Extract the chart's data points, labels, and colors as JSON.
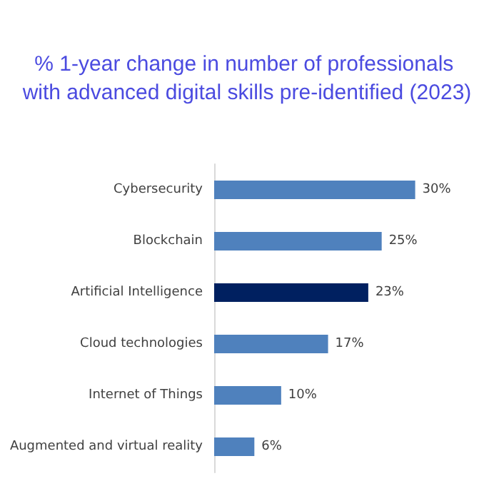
{
  "chart_data": {
    "type": "bar",
    "orientation": "horizontal",
    "tick_labels": "y",
    "title": "% 1-year change in number of professionals with advanced digital skills pre-identified (2023)",
    "categories": [
      "Cybersecurity",
      "Blockchain",
      "Artificial Intelligence",
      "Cloud technologies",
      "Internet of Things",
      "Augmented and virtual reality"
    ],
    "values": [
      30,
      25,
      23,
      17,
      10,
      6
    ],
    "value_labels": [
      "30%",
      "25%",
      "23%",
      "17%",
      "10%",
      "6%"
    ],
    "colors": [
      "#4f81bd",
      "#4f81bd",
      "#002060",
      "#4f81bd",
      "#4f81bd",
      "#4f81bd"
    ]
  }
}
